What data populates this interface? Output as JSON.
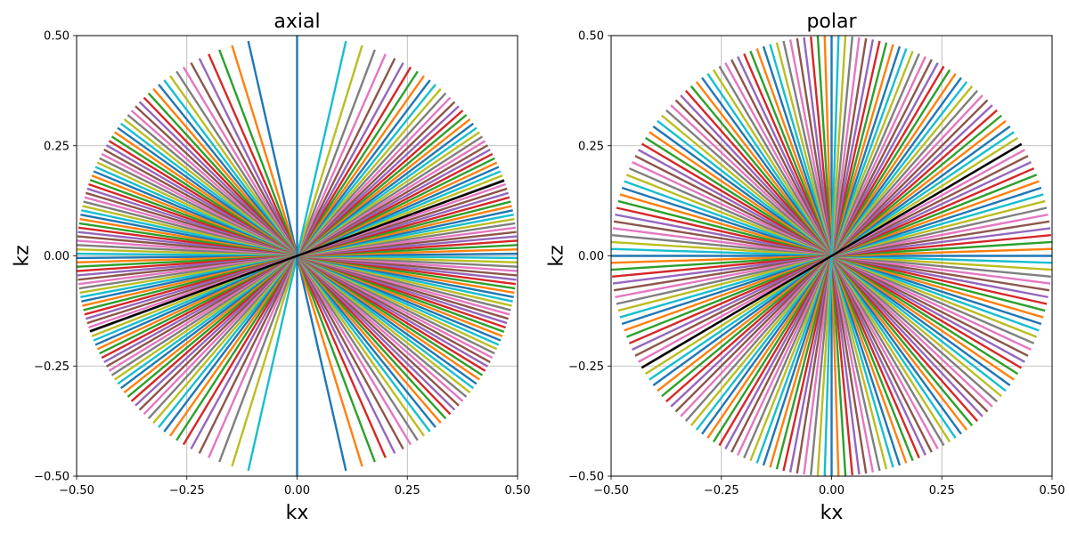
{
  "colors": {
    "cycle": [
      "#1f77b4",
      "#ff7f0e",
      "#2ca02c",
      "#d62728",
      "#9467bd",
      "#8c564b",
      "#e377c2",
      "#7f7f7f",
      "#bcbd22",
      "#17becf"
    ],
    "highlight": "#000000",
    "grid": "#b0b0b0"
  },
  "chart_data": [
    {
      "type": "line",
      "title": "axial",
      "xlabel": "kx",
      "ylabel": "kz",
      "xlim": [
        -0.5,
        0.5
      ],
      "ylim": [
        -0.5,
        0.5
      ],
      "xticks": [
        -0.5,
        -0.25,
        0.0,
        0.25,
        0.5
      ],
      "yticks": [
        -0.5,
        -0.25,
        0.0,
        0.25,
        0.5
      ],
      "xtick_labels": [
        "−0.50",
        "−0.25",
        "0.00",
        "0.25",
        "0.50"
      ],
      "ytick_labels": [
        "−0.50",
        "−0.25",
        "0.00",
        "0.25",
        "0.50"
      ],
      "grid": true,
      "series_description": "Many radial spokes through the origin, each a line from -0.5*(cos t, sin t) to 0.5*(cos t, sin t); spokes are denser near horizontal (axial projection of 3D radial sampling), colored with the default color cycle",
      "spoke_radius": 0.5,
      "spoke_count": 100,
      "angle_distribution": "axial",
      "highlight_spoke": {
        "angle_deg": 20,
        "color": "#000000"
      }
    },
    {
      "type": "line",
      "title": "polar",
      "xlabel": "kx",
      "ylabel": "kz",
      "xlim": [
        -0.5,
        0.5
      ],
      "ylim": [
        -0.5,
        0.5
      ],
      "xticks": [
        -0.5,
        -0.25,
        0.0,
        0.25,
        0.5
      ],
      "yticks": [
        -0.5,
        -0.25,
        0.0,
        0.25,
        0.5
      ],
      "xtick_labels": [
        "−0.50",
        "−0.25",
        "0.00",
        "0.25",
        "0.50"
      ],
      "ytick_labels": [
        "−0.50",
        "−0.25",
        "0.00",
        "0.25",
        "0.50"
      ],
      "grid": true,
      "series_description": "Many radial spokes through the origin uniformly distributed in angle, lines from -0.5*(cos t, sin t) to 0.5*(cos t, sin t), colored with the default color cycle",
      "spoke_radius": 0.5,
      "spoke_count": 100,
      "angle_distribution": "uniform",
      "highlight_spoke": {
        "angle_deg": 30.5,
        "color": "#000000"
      }
    }
  ]
}
